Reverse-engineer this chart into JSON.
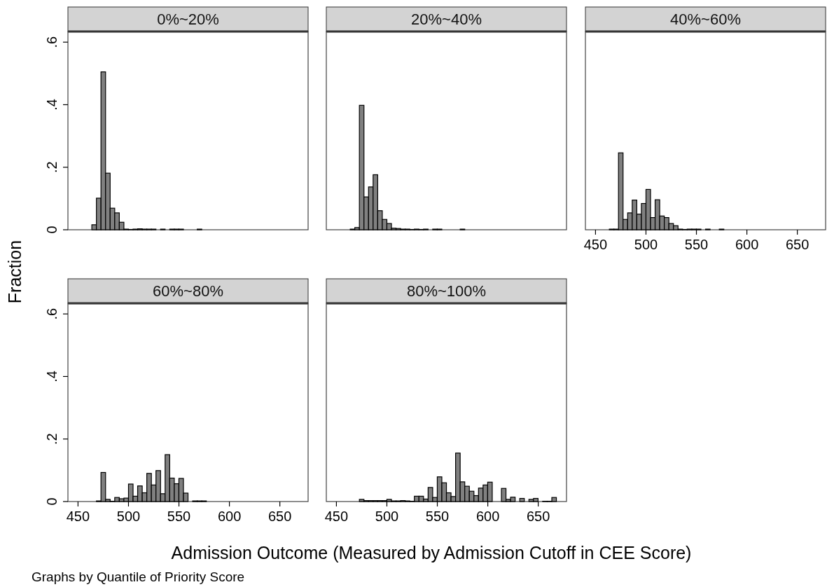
{
  "chart_data": [
    {
      "type": "histogram",
      "title": "0%~20%",
      "ylabel": "Fraction",
      "color": "#808080",
      "tick_labels": "y",
      "xlim": [
        440,
        678
      ],
      "ylim": [
        0,
        0.634
      ],
      "yticks": [
        0,
        {
          "value": 0.2,
          "label": ".2"
        },
        {
          "value": 0.4,
          "label": ".4"
        },
        {
          "value": 0.6,
          "label": ".6"
        }
      ],
      "bins": [
        459.14,
        463.68,
        468.22,
        472.76,
        477.3,
        481.84,
        486.38,
        490.92,
        495.46,
        500,
        504.54,
        509.08,
        513.62,
        518.16,
        522.7,
        527.24,
        531.78,
        536.32,
        540.86,
        545.4,
        549.94,
        554.48,
        559.02,
        563.56,
        568.1,
        572.64,
        577.18,
        581.72,
        586.26,
        590.8,
        595.34,
        599.88,
        604.42,
        608.96,
        613.5,
        618.04,
        622.58,
        627.12,
        631.66,
        636.2,
        640.74,
        645.28,
        649.82,
        654.36,
        658.9,
        663.44,
        667.98
      ],
      "values": [
        0,
        0.016,
        0.101,
        0.505,
        0.181,
        0.069,
        0.054,
        0.024,
        0.002,
        0.001,
        0.002,
        0.003,
        0.002,
        0.002,
        0.002,
        0,
        0.002,
        0,
        0.002,
        0.002,
        0.002,
        0,
        0,
        0,
        0.002,
        0,
        0,
        0,
        0,
        0,
        0,
        0,
        0,
        0,
        0,
        0,
        0,
        0,
        0,
        0,
        0,
        0,
        0,
        0,
        0,
        0
      ]
    },
    {
      "type": "histogram",
      "title": "20%~40%",
      "color": "#808080",
      "tick_labels": false,
      "xlim": [
        440,
        678
      ],
      "ylim": [
        0,
        0.634
      ],
      "bins": [
        459.14,
        463.68,
        468.22,
        472.76,
        477.3,
        481.84,
        486.38,
        490.92,
        495.46,
        500,
        504.54,
        509.08,
        513.62,
        518.16,
        522.7,
        527.24,
        531.78,
        536.32,
        540.86,
        545.4,
        549.94,
        554.48,
        559.02,
        563.56,
        568.1,
        572.64,
        577.18,
        581.72,
        586.26,
        590.8,
        595.34,
        599.88,
        604.42,
        608.96,
        613.5,
        618.04,
        622.58,
        627.12,
        631.66,
        636.2,
        640.74,
        645.28,
        649.82,
        654.36,
        658.9,
        663.44,
        667.98
      ],
      "values": [
        0,
        0.002,
        0.007,
        0.398,
        0.105,
        0.137,
        0.176,
        0.061,
        0.033,
        0.02,
        0.005,
        0.004,
        0.002,
        0.002,
        0.001,
        0.002,
        0.001,
        0.002,
        0,
        0.002,
        0.002,
        0,
        0,
        0,
        0,
        0.002,
        0,
        0,
        0,
        0,
        0,
        0,
        0,
        0,
        0,
        0,
        0,
        0,
        0,
        0,
        0,
        0,
        0,
        0,
        0,
        0
      ]
    },
    {
      "type": "histogram",
      "title": "40%~60%",
      "color": "#808080",
      "tick_labels": "x",
      "xlim": [
        440,
        678
      ],
      "ylim": [
        0,
        0.634
      ],
      "xticks": [
        450,
        500,
        550,
        600,
        650
      ],
      "bins": [
        459.14,
        463.68,
        468.22,
        472.76,
        477.3,
        481.84,
        486.38,
        490.92,
        495.46,
        500,
        504.54,
        509.08,
        513.62,
        518.16,
        522.7,
        527.24,
        531.78,
        536.32,
        540.86,
        545.4,
        549.94,
        554.48,
        559.02,
        563.56,
        568.1,
        572.64,
        577.18,
        581.72,
        586.26,
        590.8,
        595.34,
        599.88,
        604.42,
        608.96,
        613.5,
        618.04,
        622.58,
        627.12,
        631.66,
        636.2,
        640.74,
        645.28,
        649.82,
        654.36,
        658.9,
        663.44,
        667.98
      ],
      "values": [
        0,
        0.002,
        0.002,
        0.246,
        0.033,
        0.054,
        0.095,
        0.05,
        0.084,
        0.129,
        0.039,
        0.096,
        0.044,
        0.039,
        0.02,
        0.013,
        0.002,
        0.001,
        0.002,
        0.002,
        0.002,
        0,
        0.002,
        0,
        0,
        0.002,
        0,
        0,
        0,
        0,
        0,
        0,
        0,
        0,
        0,
        0,
        0,
        0,
        0,
        0,
        0,
        0,
        0,
        0,
        0,
        0
      ]
    },
    {
      "type": "histogram",
      "title": "60%~80%",
      "color": "#808080",
      "xlim": [
        440,
        678
      ],
      "ylim": [
        0,
        0.634
      ],
      "xticks": [
        450,
        500,
        550,
        600,
        650
      ],
      "yticks": [
        0,
        {
          "value": 0.2,
          "label": ".2"
        },
        {
          "value": 0.4,
          "label": ".4"
        },
        {
          "value": 0.6,
          "label": ".6"
        }
      ],
      "bins": [
        459.14,
        463.68,
        468.22,
        472.76,
        477.3,
        481.84,
        486.38,
        490.92,
        495.46,
        500,
        504.54,
        509.08,
        513.62,
        518.16,
        522.7,
        527.24,
        531.78,
        536.32,
        540.86,
        545.4,
        549.94,
        554.48,
        559.02,
        563.56,
        568.1,
        572.64,
        577.18,
        581.72,
        586.26,
        590.8,
        595.34,
        599.88,
        604.42,
        608.96,
        613.5,
        618.04,
        622.58,
        627.12,
        631.66,
        636.2,
        640.74,
        645.28,
        649.82,
        654.36,
        658.9,
        663.44,
        667.98
      ],
      "values": [
        0,
        0,
        0.002,
        0.093,
        0.007,
        0.001,
        0.013,
        0.009,
        0.011,
        0.056,
        0.017,
        0.05,
        0.028,
        0.09,
        0.053,
        0.099,
        0.025,
        0.15,
        0.075,
        0.057,
        0.074,
        0.027,
        0,
        0.002,
        0.002,
        0.002,
        0,
        0,
        0,
        0,
        0,
        0,
        0,
        0,
        0,
        0,
        0,
        0,
        0,
        0,
        0,
        0,
        0,
        0,
        0,
        0
      ]
    },
    {
      "type": "histogram",
      "title": "80%~100%",
      "xlabel": "Admission Outcome (Measured by Admission Cutoff in CEE Score)",
      "annotations": [
        "Graphs by Quantile of Priority Score"
      ],
      "color": "#808080",
      "tick_labels": "x",
      "xlim": [
        440,
        678
      ],
      "ylim": [
        0,
        0.634
      ],
      "xticks": [
        450,
        500,
        550,
        600,
        650
      ],
      "bins": [
        459.14,
        463.68,
        468.22,
        472.76,
        477.3,
        481.84,
        486.38,
        490.92,
        495.46,
        500,
        504.54,
        509.08,
        513.62,
        518.16,
        522.7,
        527.24,
        531.78,
        536.32,
        540.86,
        545.4,
        549.94,
        554.48,
        559.02,
        563.56,
        568.1,
        572.64,
        577.18,
        581.72,
        586.26,
        590.8,
        595.34,
        599.88,
        604.42,
        608.96,
        613.5,
        618.04,
        622.58,
        627.12,
        631.66,
        636.2,
        640.74,
        645.28,
        649.82,
        654.36,
        658.9,
        663.44,
        667.98
      ],
      "values": [
        0,
        0,
        0,
        0.007,
        0.003,
        0.003,
        0.003,
        0.003,
        0.003,
        0.007,
        0.002,
        0.002,
        0.003,
        0.002,
        0.001,
        0.017,
        0.017,
        0.008,
        0.045,
        0.013,
        0.079,
        0.06,
        0.028,
        0.016,
        0.155,
        0.063,
        0.049,
        0.033,
        0.019,
        0.043,
        0.053,
        0.062,
        0,
        0,
        0.042,
        0.007,
        0.014,
        0,
        0.01,
        0,
        0.007,
        0.01,
        0,
        0.001,
        0.001,
        0.013
      ]
    }
  ]
}
